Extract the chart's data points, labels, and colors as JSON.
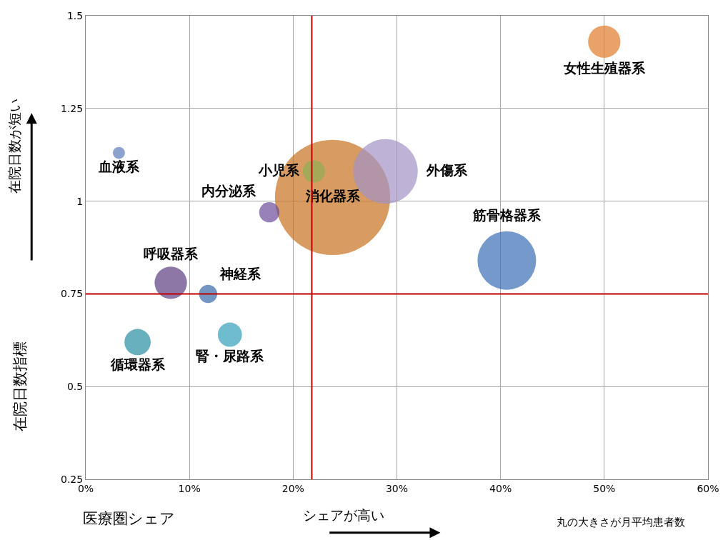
{
  "chart_data": {
    "type": "bubble",
    "xlabel": "医療圏シェア",
    "ylabel": "在院日数指標",
    "annotations": [
      "在院日数が短い",
      "シェアが高い",
      "丸の大きさが月平均患者数"
    ],
    "series": [
      {
        "name": "女性生殖器系",
        "color": "#e07b26",
        "x": [
          50.0
        ],
        "values": [
          1.43
        ],
        "sizes": [
          0.079
        ]
      },
      {
        "name": "血液系",
        "color": "#5a7cb8",
        "x": [
          3.2
        ],
        "values": [
          1.13
        ],
        "sizes": [
          0.011
        ]
      },
      {
        "name": "小児系",
        "color": "#8fae52",
        "x": [
          22.0
        ],
        "values": [
          1.08
        ],
        "sizes": [
          0.037
        ]
      },
      {
        "name": "消化器系",
        "color": "#c8711e",
        "x": [
          23.8
        ],
        "values": [
          1.01
        ],
        "sizes": [
          1
        ]
      },
      {
        "name": "外傷系",
        "color": "#a393c4",
        "x": [
          28.9
        ],
        "values": [
          1.08
        ],
        "sizes": [
          0.315
        ]
      },
      {
        "name": "内分泌系",
        "color": "#6c4a9a",
        "x": [
          17.7
        ],
        "values": [
          0.97
        ],
        "sizes": [
          0.031
        ]
      },
      {
        "name": "筋骨格器系",
        "color": "#3a6db5",
        "x": [
          40.6
        ],
        "values": [
          0.84
        ],
        "sizes": [
          0.259
        ]
      },
      {
        "name": "呼吸器系",
        "color": "#5b3d80",
        "x": [
          8.2
        ],
        "values": [
          0.78
        ],
        "sizes": [
          0.079
        ]
      },
      {
        "name": "神経系",
        "color": "#3868a8",
        "x": [
          11.8
        ],
        "values": [
          0.75
        ],
        "sizes": [
          0.025
        ]
      },
      {
        "name": "腎・尿路系",
        "color": "#30a0b8",
        "x": [
          13.9
        ],
        "values": [
          0.64
        ],
        "sizes": [
          0.044
        ]
      },
      {
        "name": "循環器系",
        "color": "#2a8fa3",
        "x": [
          5.0
        ],
        "values": [
          0.62
        ],
        "sizes": [
          0.052
        ]
      }
    ],
    "xlim": [
      0,
      60
    ],
    "xticks": [
      {
        "value": 0,
        "label": "0%"
      },
      {
        "value": 10,
        "label": "10%"
      },
      {
        "value": 20,
        "label": "20%"
      },
      {
        "value": 30,
        "label": "30%"
      },
      {
        "value": 40,
        "label": "40%"
      },
      {
        "value": 50,
        "label": "50%"
      },
      {
        "value": 60,
        "label": "60%"
      }
    ],
    "ylim": [
      0.25,
      1.5
    ],
    "yticks": [
      0.25,
      0.5,
      0.75,
      1,
      1.25,
      1.5
    ],
    "ref_lines": [
      {
        "axis": "x",
        "value": 21.8,
        "color": "#c00000"
      },
      {
        "axis": "y",
        "value": 0.75,
        "color": "#c00000"
      }
    ],
    "grid": true,
    "legend": false
  }
}
